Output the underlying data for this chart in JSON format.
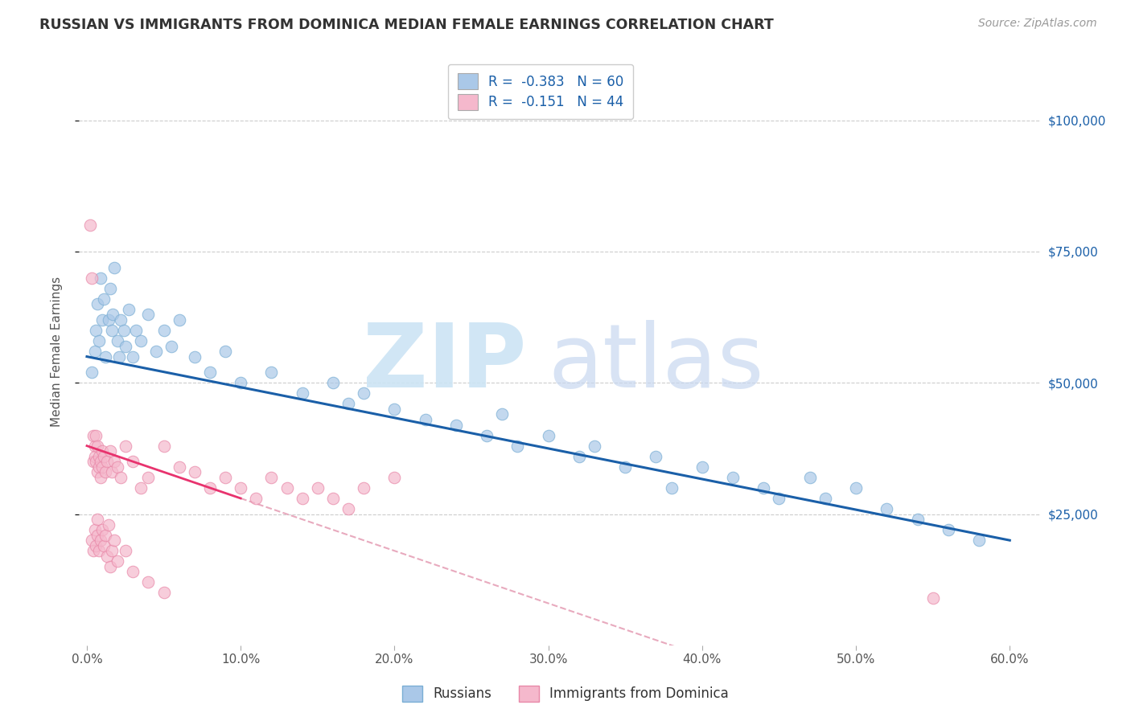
{
  "title": "RUSSIAN VS IMMIGRANTS FROM DOMINICA MEDIAN FEMALE EARNINGS CORRELATION CHART",
  "source": "Source: ZipAtlas.com",
  "ylabel": "Median Female Earnings",
  "xlabel_vals": [
    0,
    10,
    20,
    30,
    40,
    50,
    60
  ],
  "ytick_vals": [
    25000,
    50000,
    75000,
    100000
  ],
  "yright_labels": [
    "$25,000",
    "$50,000",
    "$75,000",
    "$100,000"
  ],
  "ylim": [
    0,
    112000
  ],
  "xlim": [
    -0.5,
    62
  ],
  "legend_entries": [
    {
      "label": "R =  -0.383   N = 60",
      "color": "#aac8e8"
    },
    {
      "label": "R =  -0.151   N = 44",
      "color": "#f5b8cc"
    }
  ],
  "legend_labels": [
    "Russians",
    "Immigrants from Dominica"
  ],
  "russian_color": "#aac8e8",
  "dominica_color": "#f5b8cc",
  "russian_edge": "#7aaed4",
  "dominica_edge": "#e888a8",
  "reg_line_russian_color": "#1a5fa8",
  "reg_line_dominica_color": "#e8336e",
  "reg_line_dominica_dashed_color": "#e8aabe",
  "watermark_zip_color": "#cce4f4",
  "watermark_atlas_color": "#c8d8f0",
  "background_color": "#ffffff",
  "grid_color": "#cccccc",
  "russian_x": [
    0.3,
    0.5,
    0.6,
    0.7,
    0.8,
    0.9,
    1.0,
    1.1,
    1.2,
    1.4,
    1.5,
    1.6,
    1.7,
    1.8,
    2.0,
    2.1,
    2.2,
    2.4,
    2.5,
    2.7,
    3.0,
    3.2,
    3.5,
    4.0,
    4.5,
    5.0,
    5.5,
    6.0,
    7.0,
    8.0,
    9.0,
    10.0,
    12.0,
    14.0,
    16.0,
    17.0,
    18.0,
    20.0,
    22.0,
    24.0,
    26.0,
    27.0,
    28.0,
    30.0,
    32.0,
    33.0,
    35.0,
    37.0,
    38.0,
    40.0,
    42.0,
    44.0,
    45.0,
    47.0,
    48.0,
    50.0,
    52.0,
    54.0,
    56.0,
    58.0
  ],
  "russian_y": [
    52000,
    56000,
    60000,
    65000,
    58000,
    70000,
    62000,
    66000,
    55000,
    62000,
    68000,
    60000,
    63000,
    72000,
    58000,
    55000,
    62000,
    60000,
    57000,
    64000,
    55000,
    60000,
    58000,
    63000,
    56000,
    60000,
    57000,
    62000,
    55000,
    52000,
    56000,
    50000,
    52000,
    48000,
    50000,
    46000,
    48000,
    45000,
    43000,
    42000,
    40000,
    44000,
    38000,
    40000,
    36000,
    38000,
    34000,
    36000,
    30000,
    34000,
    32000,
    30000,
    28000,
    32000,
    28000,
    30000,
    26000,
    24000,
    22000,
    20000
  ],
  "dominica_x": [
    0.2,
    0.3,
    0.4,
    0.4,
    0.5,
    0.5,
    0.6,
    0.6,
    0.7,
    0.7,
    0.8,
    0.8,
    0.9,
    0.9,
    1.0,
    1.0,
    1.1,
    1.2,
    1.3,
    1.5,
    1.6,
    1.8,
    2.0,
    2.2,
    2.5,
    3.0,
    3.5,
    4.0,
    5.0,
    6.0,
    7.0,
    8.0,
    9.0,
    10.0,
    11.0,
    12.0,
    13.0,
    14.0,
    15.0,
    16.0,
    17.0,
    18.0,
    20.0,
    55.0
  ],
  "dominica_y": [
    80000,
    70000,
    40000,
    35000,
    38000,
    36000,
    40000,
    35000,
    38000,
    33000,
    36000,
    34000,
    35000,
    32000,
    37000,
    34000,
    36000,
    33000,
    35000,
    37000,
    33000,
    35000,
    34000,
    32000,
    38000,
    35000,
    30000,
    32000,
    38000,
    34000,
    33000,
    30000,
    32000,
    30000,
    28000,
    32000,
    30000,
    28000,
    30000,
    28000,
    26000,
    30000,
    32000,
    9000
  ],
  "dominica_below_x": [
    0.3,
    0.4,
    0.5,
    0.6,
    0.7,
    0.7,
    0.8,
    0.9,
    1.0,
    1.1,
    1.2,
    1.3,
    1.4,
    1.5,
    1.6,
    1.8,
    2.0,
    2.5,
    3.0,
    4.0,
    5.0
  ],
  "dominica_below_y": [
    20000,
    18000,
    22000,
    19000,
    21000,
    24000,
    18000,
    20000,
    22000,
    19000,
    21000,
    17000,
    23000,
    15000,
    18000,
    20000,
    16000,
    18000,
    14000,
    12000,
    10000
  ]
}
